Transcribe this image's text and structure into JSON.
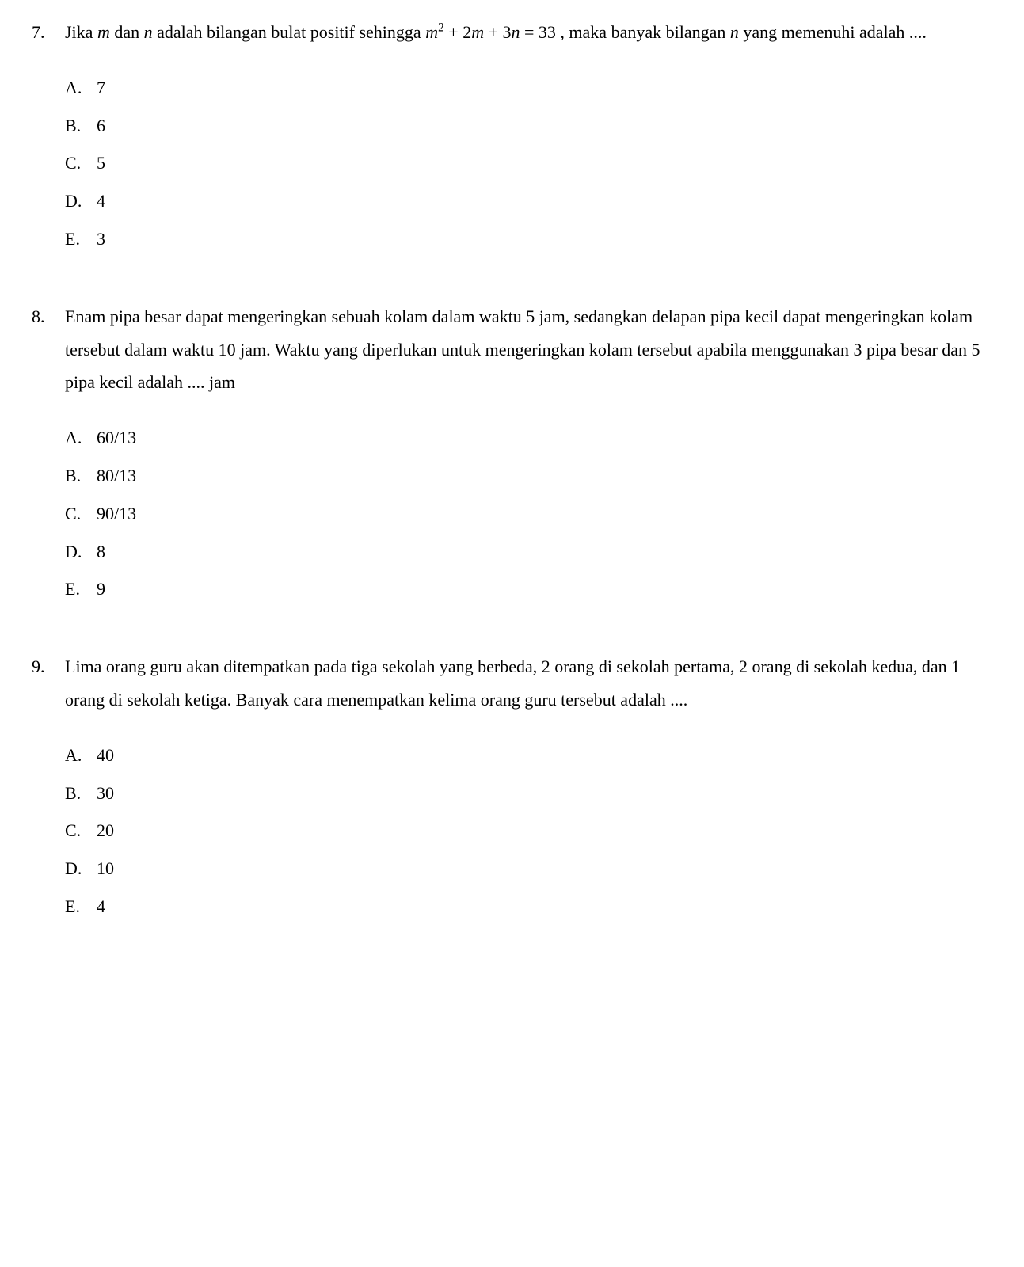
{
  "questions": [
    {
      "number": "7.",
      "text_parts": [
        {
          "t": "Jika "
        },
        {
          "t": "m",
          "italic": true
        },
        {
          "t": " dan "
        },
        {
          "t": "n",
          "italic": true
        },
        {
          "t": " adalah bilangan bulat positif sehingga  "
        },
        {
          "t": "m",
          "italic": true
        },
        {
          "t": "2",
          "sup": true
        },
        {
          "t": " + 2"
        },
        {
          "t": "m",
          "italic": true
        },
        {
          "t": " + 3"
        },
        {
          "t": "n",
          "italic": true
        },
        {
          "t": " = 33 , maka banyak bilangan "
        },
        {
          "t": "n",
          "italic": true
        },
        {
          "t": " yang memenuhi adalah ...."
        }
      ],
      "options": [
        {
          "letter": "A.",
          "value": "7"
        },
        {
          "letter": "B.",
          "value": "6"
        },
        {
          "letter": "C.",
          "value": "5"
        },
        {
          "letter": "D.",
          "value": "4"
        },
        {
          "letter": "E.",
          "value": "3"
        }
      ]
    },
    {
      "number": "8.",
      "text_parts": [
        {
          "t": "Enam pipa besar dapat mengeringkan sebuah kolam dalam waktu 5 jam, sedangkan delapan pipa kecil dapat mengeringkan kolam tersebut dalam waktu 10 jam.  Waktu yang diperlukan untuk mengeringkan kolam tersebut apabila menggunakan 3 pipa besar dan 5 pipa kecil adalah .... jam"
        }
      ],
      "options": [
        {
          "letter": "A.",
          "value": "60/13"
        },
        {
          "letter": "B.",
          "value": "80/13"
        },
        {
          "letter": "C.",
          "value": "90/13"
        },
        {
          "letter": "D.",
          "value": "8"
        },
        {
          "letter": "E.",
          "value": "9"
        }
      ]
    },
    {
      "number": "9.",
      "text_parts": [
        {
          "t": "Lima orang guru  akan ditempatkan pada tiga sekolah yang berbeda, 2 orang di sekolah pertama, 2 orang di sekolah kedua, dan 1 orang di sekolah ketiga. Banyak cara menempatkan kelima orang guru tersebut  adalah ...."
        }
      ],
      "options": [
        {
          "letter": "A.",
          "value": "40"
        },
        {
          "letter": "B.",
          "value": "30"
        },
        {
          "letter": "C.",
          "value": "20"
        },
        {
          "letter": "D.",
          "value": "10"
        },
        {
          "letter": "E.",
          "value": "  4"
        }
      ]
    }
  ]
}
